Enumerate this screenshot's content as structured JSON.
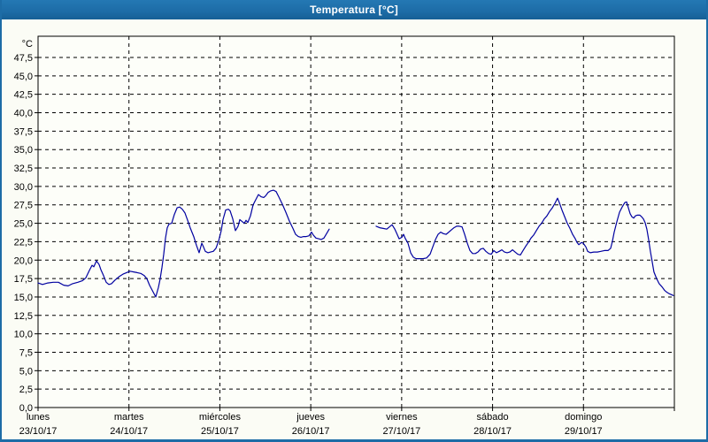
{
  "window": {
    "title": "Temperatura [°C]"
  },
  "colors": {
    "titlebar": "#1d6ca6",
    "frame": "#1d6ca6",
    "line": "#0000a0",
    "grid": "#000000",
    "background": "#fbfcf5",
    "plot_background": "#fdfef9",
    "text": "#000000",
    "title_text": "#ffffff"
  },
  "chart_data": {
    "type": "line",
    "title": "Temperatura [°C]",
    "ylabel": "°C",
    "ylim": [
      0,
      47.5
    ],
    "y_tick_step": 2.5,
    "grid": "dashed",
    "legend": "none",
    "decimal_separator": ",",
    "y_tick_labels": [
      "0,0",
      "2,5",
      "5,0",
      "7,5",
      "10,0",
      "12,5",
      "15,0",
      "17,5",
      "20,0",
      "22,5",
      "25,0",
      "27,5",
      "30,0",
      "32,5",
      "35,0",
      "37,5",
      "40,0",
      "42,5",
      "45,0",
      "47,5"
    ],
    "x_days": [
      {
        "name": "lunes",
        "date": "23/10/17"
      },
      {
        "name": "martes",
        "date": "24/10/17"
      },
      {
        "name": "miércoles",
        "date": "25/10/17"
      },
      {
        "name": "jueves",
        "date": "26/10/17"
      },
      {
        "name": "viernes",
        "date": "27/10/17"
      },
      {
        "name": "sábado",
        "date": "28/10/17"
      },
      {
        "name": "domingo",
        "date": "29/10/17"
      }
    ],
    "x_unit": "days_from_monday_start",
    "series": [
      {
        "name": "Temperatura",
        "color": "#0000a0",
        "note": "data gap during jueves between x=3.203 and x=3.719",
        "segments": [
          [
            [
              0.0,
              16.9
            ],
            [
              0.049,
              16.7
            ],
            [
              0.107,
              16.9
            ],
            [
              0.166,
              17.0
            ],
            [
              0.224,
              17.0
            ],
            [
              0.282,
              16.6
            ],
            [
              0.331,
              16.5
            ],
            [
              0.38,
              16.8
            ],
            [
              0.438,
              17.0
            ],
            [
              0.487,
              17.2
            ],
            [
              0.526,
              17.6
            ],
            [
              0.565,
              18.6
            ],
            [
              0.594,
              19.3
            ],
            [
              0.613,
              19.1
            ],
            [
              0.643,
              19.9
            ],
            [
              0.672,
              19.4
            ],
            [
              0.691,
              18.7
            ],
            [
              0.72,
              17.9
            ],
            [
              0.75,
              17.0
            ],
            [
              0.779,
              16.7
            ],
            [
              0.808,
              16.8
            ],
            [
              0.847,
              17.3
            ],
            [
              0.896,
              17.8
            ],
            [
              0.935,
              18.1
            ],
            [
              0.974,
              18.3
            ],
            [
              1.012,
              18.5
            ],
            [
              1.051,
              18.4
            ],
            [
              1.09,
              18.3
            ],
            [
              1.129,
              18.2
            ],
            [
              1.168,
              17.9
            ],
            [
              1.197,
              17.5
            ],
            [
              1.227,
              16.6
            ],
            [
              1.256,
              15.9
            ],
            [
              1.295,
              15.0
            ],
            [
              1.324,
              16.3
            ],
            [
              1.343,
              17.4
            ],
            [
              1.363,
              19.0
            ],
            [
              1.382,
              20.8
            ],
            [
              1.402,
              23.0
            ],
            [
              1.421,
              24.4
            ],
            [
              1.441,
              24.9
            ],
            [
              1.47,
              25.0
            ],
            [
              1.499,
              26.2
            ],
            [
              1.529,
              27.1
            ],
            [
              1.558,
              27.2
            ],
            [
              1.587,
              26.9
            ],
            [
              1.616,
              26.4
            ],
            [
              1.645,
              25.4
            ],
            [
              1.674,
              24.4
            ],
            [
              1.713,
              23.2
            ],
            [
              1.743,
              22.0
            ],
            [
              1.772,
              21.0
            ],
            [
              1.801,
              22.3
            ],
            [
              1.82,
              21.8
            ],
            [
              1.84,
              21.2
            ],
            [
              1.869,
              21.0
            ],
            [
              1.898,
              21.1
            ],
            [
              1.928,
              21.2
            ],
            [
              1.957,
              21.6
            ],
            [
              1.986,
              22.6
            ],
            [
              2.015,
              24.0
            ],
            [
              2.035,
              25.5
            ],
            [
              2.064,
              26.8
            ],
            [
              2.093,
              26.9
            ],
            [
              2.113,
              26.7
            ],
            [
              2.142,
              25.6
            ],
            [
              2.171,
              24.0
            ],
            [
              2.2,
              24.6
            ],
            [
              2.22,
              25.5
            ],
            [
              2.249,
              25.2
            ],
            [
              2.268,
              25.0
            ],
            [
              2.288,
              25.4
            ],
            [
              2.307,
              25.1
            ],
            [
              2.337,
              26.0
            ],
            [
              2.366,
              27.5
            ],
            [
              2.395,
              28.2
            ],
            [
              2.424,
              28.9
            ],
            [
              2.453,
              28.6
            ],
            [
              2.483,
              28.5
            ],
            [
              2.502,
              28.7
            ],
            [
              2.531,
              29.2
            ],
            [
              2.56,
              29.4
            ],
            [
              2.59,
              29.5
            ],
            [
              2.619,
              29.3
            ],
            [
              2.648,
              28.6
            ],
            [
              2.687,
              27.6
            ],
            [
              2.726,
              26.5
            ],
            [
              2.765,
              25.3
            ],
            [
              2.804,
              24.3
            ],
            [
              2.833,
              23.5
            ],
            [
              2.862,
              23.2
            ],
            [
              2.892,
              23.1
            ],
            [
              2.921,
              23.2
            ],
            [
              2.95,
              23.2
            ],
            [
              2.979,
              23.3
            ],
            [
              3.008,
              23.8
            ],
            [
              3.028,
              23.4
            ],
            [
              3.057,
              23.0
            ],
            [
              3.086,
              22.9
            ],
            [
              3.115,
              22.8
            ],
            [
              3.145,
              23.0
            ],
            [
              3.174,
              23.6
            ],
            [
              3.203,
              24.2
            ]
          ],
          [
            [
              3.719,
              24.6
            ],
            [
              3.758,
              24.4
            ],
            [
              3.797,
              24.3
            ],
            [
              3.836,
              24.2
            ],
            [
              3.865,
              24.5
            ],
            [
              3.894,
              24.8
            ],
            [
              3.924,
              24.2
            ],
            [
              3.943,
              23.7
            ],
            [
              3.972,
              22.9
            ],
            [
              4.002,
              23.1
            ],
            [
              4.021,
              23.5
            ],
            [
              4.041,
              22.9
            ],
            [
              4.07,
              22.3
            ],
            [
              4.099,
              21.0
            ],
            [
              4.128,
              20.4
            ],
            [
              4.157,
              20.2
            ],
            [
              4.196,
              20.2
            ],
            [
              4.235,
              20.2
            ],
            [
              4.274,
              20.3
            ],
            [
              4.313,
              20.8
            ],
            [
              4.342,
              21.8
            ],
            [
              4.372,
              22.8
            ],
            [
              4.401,
              23.5
            ],
            [
              4.43,
              23.8
            ],
            [
              4.459,
              23.6
            ],
            [
              4.488,
              23.5
            ],
            [
              4.518,
              23.8
            ],
            [
              4.547,
              24.1
            ],
            [
              4.576,
              24.4
            ],
            [
              4.605,
              24.6
            ],
            [
              4.634,
              24.6
            ],
            [
              4.664,
              24.5
            ],
            [
              4.693,
              23.5
            ],
            [
              4.722,
              22.3
            ],
            [
              4.751,
              21.3
            ],
            [
              4.78,
              20.9
            ],
            [
              4.81,
              20.9
            ],
            [
              4.839,
              21.1
            ],
            [
              4.868,
              21.5
            ],
            [
              4.897,
              21.6
            ],
            [
              4.926,
              21.2
            ],
            [
              4.956,
              20.9
            ],
            [
              4.985,
              20.8
            ],
            [
              5.014,
              21.3
            ],
            [
              5.043,
              21.0
            ],
            [
              5.073,
              21.2
            ],
            [
              5.102,
              21.4
            ],
            [
              5.131,
              21.1
            ],
            [
              5.16,
              21.0
            ],
            [
              5.189,
              21.1
            ],
            [
              5.219,
              21.4
            ],
            [
              5.248,
              21.1
            ],
            [
              5.277,
              20.8
            ],
            [
              5.306,
              20.7
            ],
            [
              5.335,
              21.3
            ],
            [
              5.365,
              21.9
            ],
            [
              5.394,
              22.4
            ],
            [
              5.423,
              23.0
            ],
            [
              5.452,
              23.4
            ],
            [
              5.481,
              24.0
            ],
            [
              5.511,
              24.6
            ],
            [
              5.54,
              25.0
            ],
            [
              5.569,
              25.6
            ],
            [
              5.598,
              26.0
            ],
            [
              5.627,
              26.6
            ],
            [
              5.657,
              27.1
            ],
            [
              5.686,
              27.7
            ],
            [
              5.715,
              28.4
            ],
            [
              5.734,
              27.8
            ],
            [
              5.764,
              26.8
            ],
            [
              5.793,
              25.9
            ],
            [
              5.822,
              25.0
            ],
            [
              5.851,
              24.3
            ],
            [
              5.88,
              23.5
            ],
            [
              5.91,
              22.9
            ],
            [
              5.929,
              22.4
            ],
            [
              5.949,
              22.1
            ],
            [
              5.978,
              22.4
            ],
            [
              5.997,
              22.3
            ],
            [
              6.026,
              21.8
            ],
            [
              6.046,
              21.2
            ],
            [
              6.075,
              21.0
            ],
            [
              6.114,
              21.1
            ],
            [
              6.153,
              21.1
            ],
            [
              6.192,
              21.2
            ],
            [
              6.231,
              21.3
            ],
            [
              6.27,
              21.3
            ],
            [
              6.299,
              21.6
            ],
            [
              6.318,
              22.5
            ],
            [
              6.338,
              23.8
            ],
            [
              6.367,
              25.2
            ],
            [
              6.396,
              26.5
            ],
            [
              6.426,
              27.2
            ],
            [
              6.455,
              27.8
            ],
            [
              6.474,
              27.9
            ],
            [
              6.494,
              27.1
            ],
            [
              6.513,
              26.3
            ],
            [
              6.532,
              25.9
            ],
            [
              6.552,
              25.7
            ],
            [
              6.571,
              26.0
            ],
            [
              6.591,
              26.1
            ],
            [
              6.62,
              26.1
            ],
            [
              6.639,
              25.9
            ],
            [
              6.659,
              25.6
            ],
            [
              6.678,
              25.1
            ],
            [
              6.697,
              24.2
            ],
            [
              6.717,
              22.8
            ],
            [
              6.736,
              21.2
            ],
            [
              6.756,
              19.8
            ],
            [
              6.775,
              18.4
            ],
            [
              6.804,
              17.5
            ],
            [
              6.833,
              16.8
            ],
            [
              6.863,
              16.4
            ],
            [
              6.892,
              15.9
            ],
            [
              6.921,
              15.6
            ],
            [
              6.95,
              15.4
            ],
            [
              6.97,
              15.3
            ],
            [
              6.989,
              15.2
            ]
          ]
        ]
      }
    ]
  }
}
